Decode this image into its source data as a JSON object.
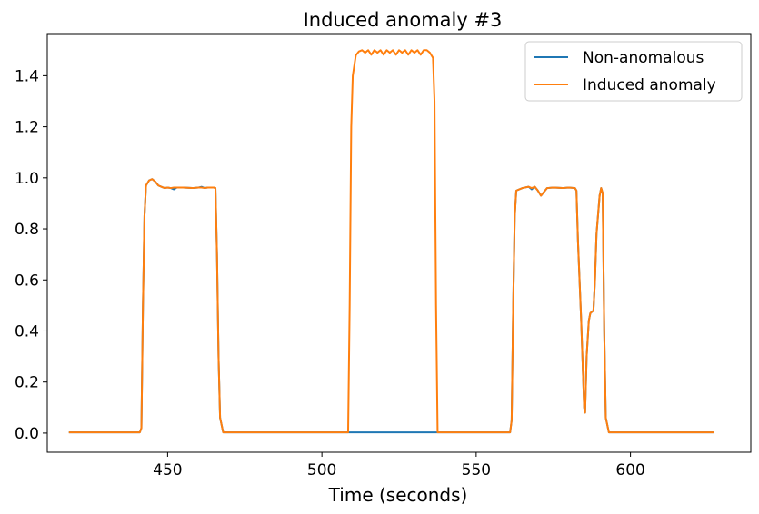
{
  "chart_data": {
    "type": "line",
    "title": "Induced anomaly #3",
    "xlabel": "Time (seconds)",
    "ylabel": "",
    "xlim": [
      411,
      639
    ],
    "ylim": [
      -0.075,
      1.565
    ],
    "xticks": [
      450,
      500,
      550,
      600
    ],
    "yticks": [
      0.0,
      0.2,
      0.4,
      0.6,
      0.8,
      1.0,
      1.2,
      1.4
    ],
    "ytick_labels": [
      "0.0",
      "0.2",
      "0.4",
      "0.6",
      "0.8",
      "1.0",
      "1.2",
      "1.4"
    ],
    "grid": false,
    "legend_position": "top-right",
    "series": [
      {
        "name": "Non-anomalous",
        "color": "#1f77b4",
        "points": [
          [
            418,
            0.003
          ],
          [
            441,
            0.003
          ],
          [
            441.5,
            0.02
          ],
          [
            442,
            0.5
          ],
          [
            442.5,
            0.85
          ],
          [
            443,
            0.97
          ],
          [
            444,
            0.99
          ],
          [
            445,
            0.995
          ],
          [
            446,
            0.985
          ],
          [
            447,
            0.97
          ],
          [
            448,
            0.965
          ],
          [
            449,
            0.96
          ],
          [
            450,
            0.962
          ],
          [
            451,
            0.96
          ],
          [
            452,
            0.955
          ],
          [
            453,
            0.962
          ],
          [
            455,
            0.962
          ],
          [
            458,
            0.96
          ],
          [
            460,
            0.962
          ],
          [
            461,
            0.965
          ],
          [
            462,
            0.96
          ],
          [
            463,
            0.962
          ],
          [
            465,
            0.962
          ],
          [
            465.5,
            0.96
          ],
          [
            466,
            0.7
          ],
          [
            466.5,
            0.3
          ],
          [
            467,
            0.06
          ],
          [
            468,
            0.003
          ],
          [
            508,
            0.003
          ],
          [
            537,
            0.003
          ],
          [
            561,
            0.003
          ],
          [
            561.5,
            0.05
          ],
          [
            562,
            0.5
          ],
          [
            562.5,
            0.85
          ],
          [
            563,
            0.95
          ],
          [
            565,
            0.96
          ],
          [
            567,
            0.965
          ],
          [
            568,
            0.955
          ],
          [
            569,
            0.965
          ],
          [
            570,
            0.95
          ],
          [
            571,
            0.93
          ],
          [
            572,
            0.945
          ],
          [
            573,
            0.96
          ],
          [
            575,
            0.962
          ],
          [
            578,
            0.96
          ],
          [
            580,
            0.962
          ],
          [
            582,
            0.96
          ],
          [
            582.5,
            0.95
          ],
          [
            583,
            0.75
          ],
          [
            584,
            0.45
          ],
          [
            585,
            0.1
          ],
          [
            585.3,
            0.08
          ],
          [
            585.8,
            0.3
          ],
          [
            586.5,
            0.44
          ],
          [
            587,
            0.47
          ],
          [
            588,
            0.48
          ],
          [
            588.5,
            0.6
          ],
          [
            589,
            0.78
          ],
          [
            590,
            0.93
          ],
          [
            590.5,
            0.96
          ],
          [
            591,
            0.94
          ],
          [
            591.5,
            0.4
          ],
          [
            592,
            0.06
          ],
          [
            593,
            0.003
          ],
          [
            627,
            0.003
          ]
        ]
      },
      {
        "name": "Induced anomaly",
        "color": "#ff7f0e",
        "points": [
          [
            418,
            0.003
          ],
          [
            441,
            0.003
          ],
          [
            441.5,
            0.02
          ],
          [
            442,
            0.5
          ],
          [
            442.5,
            0.85
          ],
          [
            443,
            0.97
          ],
          [
            444,
            0.99
          ],
          [
            445,
            0.995
          ],
          [
            446,
            0.985
          ],
          [
            447,
            0.97
          ],
          [
            448,
            0.965
          ],
          [
            449,
            0.96
          ],
          [
            450,
            0.962
          ],
          [
            451,
            0.96
          ],
          [
            452,
            0.962
          ],
          [
            453,
            0.962
          ],
          [
            455,
            0.962
          ],
          [
            458,
            0.96
          ],
          [
            460,
            0.962
          ],
          [
            461,
            0.962
          ],
          [
            462,
            0.96
          ],
          [
            463,
            0.962
          ],
          [
            465,
            0.962
          ],
          [
            465.5,
            0.96
          ],
          [
            466,
            0.7
          ],
          [
            466.5,
            0.3
          ],
          [
            467,
            0.06
          ],
          [
            468,
            0.003
          ],
          [
            508.5,
            0.003
          ],
          [
            509,
            0.5
          ],
          [
            509.5,
            1.2
          ],
          [
            510,
            1.4
          ],
          [
            511,
            1.48
          ],
          [
            512,
            1.495
          ],
          [
            513,
            1.5
          ],
          [
            514,
            1.49
          ],
          [
            515,
            1.5
          ],
          [
            516,
            1.482
          ],
          [
            517,
            1.5
          ],
          [
            518,
            1.49
          ],
          [
            519,
            1.5
          ],
          [
            520,
            1.482
          ],
          [
            521,
            1.5
          ],
          [
            522,
            1.49
          ],
          [
            523,
            1.5
          ],
          [
            524,
            1.482
          ],
          [
            525,
            1.5
          ],
          [
            526,
            1.49
          ],
          [
            527,
            1.5
          ],
          [
            528,
            1.482
          ],
          [
            529,
            1.5
          ],
          [
            530,
            1.49
          ],
          [
            531,
            1.5
          ],
          [
            532,
            1.482
          ],
          [
            533,
            1.5
          ],
          [
            534,
            1.5
          ],
          [
            535,
            1.49
          ],
          [
            536,
            1.47
          ],
          [
            536.5,
            1.3
          ],
          [
            537,
            0.5
          ],
          [
            537.5,
            0.003
          ],
          [
            561,
            0.003
          ],
          [
            561.5,
            0.05
          ],
          [
            562,
            0.5
          ],
          [
            562.5,
            0.85
          ],
          [
            563,
            0.95
          ],
          [
            565,
            0.96
          ],
          [
            567,
            0.965
          ],
          [
            568,
            0.96
          ],
          [
            569,
            0.965
          ],
          [
            570,
            0.95
          ],
          [
            571,
            0.93
          ],
          [
            572,
            0.945
          ],
          [
            573,
            0.96
          ],
          [
            575,
            0.962
          ],
          [
            578,
            0.96
          ],
          [
            580,
            0.962
          ],
          [
            582,
            0.96
          ],
          [
            582.5,
            0.95
          ],
          [
            583,
            0.75
          ],
          [
            584,
            0.45
          ],
          [
            585,
            0.1
          ],
          [
            585.3,
            0.08
          ],
          [
            585.8,
            0.3
          ],
          [
            586.5,
            0.44
          ],
          [
            587,
            0.47
          ],
          [
            588,
            0.48
          ],
          [
            588.5,
            0.6
          ],
          [
            589,
            0.78
          ],
          [
            590,
            0.93
          ],
          [
            590.5,
            0.96
          ],
          [
            591,
            0.94
          ],
          [
            591.5,
            0.4
          ],
          [
            592,
            0.06
          ],
          [
            593,
            0.003
          ],
          [
            627,
            0.003
          ]
        ]
      }
    ]
  }
}
